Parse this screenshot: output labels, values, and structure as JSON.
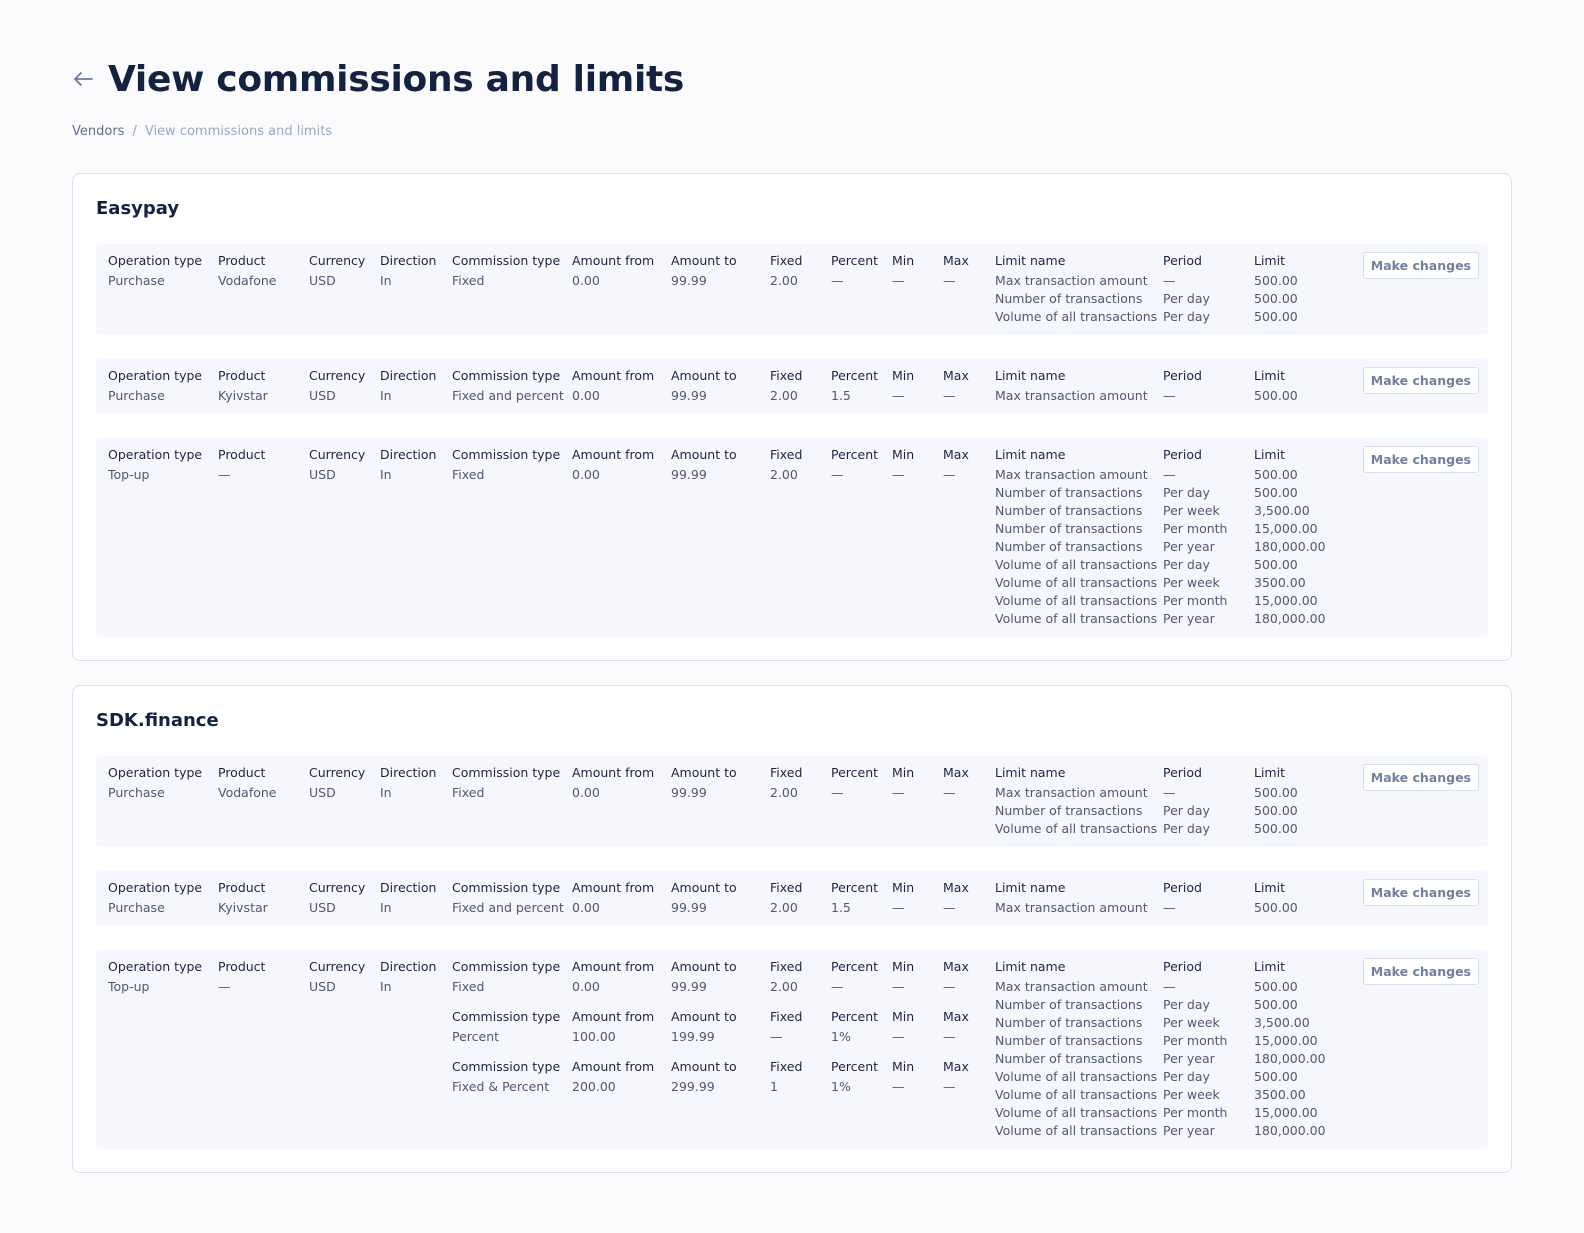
{
  "header": {
    "title": "View commissions and limits",
    "back_icon": "arrow-left-icon"
  },
  "breadcrumb": [
    {
      "label": "Vendors"
    },
    {
      "separator": "/"
    },
    {
      "label": "View commissions and limits"
    }
  ],
  "labels": {
    "operation_type": "Operation type",
    "product": "Product",
    "currency": "Currency",
    "direction": "Direction",
    "commission_type": "Commission type",
    "amount_from": "Amount from",
    "amount_to": "Amount to",
    "fixed": "Fixed",
    "percent": "Percent",
    "min": "Min",
    "max": "Max",
    "limit_name": "Limit name",
    "period": "Period",
    "limit": "Limit",
    "make_changes": "Make changes"
  },
  "vendors": [
    {
      "name": "Easypay",
      "rows": [
        {
          "operation_type": "Purchase",
          "product": "Vodafone",
          "currency": "USD",
          "direction": "In",
          "commissions": [
            {
              "type": "Fixed",
              "from": "0.00",
              "to": "99.99",
              "fixed": "2.00",
              "percent": "—",
              "min": "—",
              "max": "—"
            }
          ],
          "limits": [
            {
              "name": "Max transaction amount",
              "period": "—",
              "limit": "500.00"
            },
            {
              "name": "Number of transactions",
              "period": "Per day",
              "limit": "500.00"
            },
            {
              "name": "Volume of all transactions",
              "period": "Per day",
              "limit": "500.00"
            }
          ]
        },
        {
          "operation_type": "Purchase",
          "product": "Kyivstar",
          "currency": "USD",
          "direction": "In",
          "commissions": [
            {
              "type": "Fixed and percent",
              "from": "0.00",
              "to": "99.99",
              "fixed": "2.00",
              "percent": "1.5",
              "min": "—",
              "max": "—"
            }
          ],
          "limits": [
            {
              "name": "Max transaction amount",
              "period": "—",
              "limit": "500.00"
            }
          ]
        },
        {
          "operation_type": "Top-up",
          "product": "—",
          "currency": "USD",
          "direction": "In",
          "commissions": [
            {
              "type": "Fixed",
              "from": "0.00",
              "to": "99.99",
              "fixed": "2.00",
              "percent": "—",
              "min": "—",
              "max": "—"
            }
          ],
          "limits": [
            {
              "name": "Max transaction amount",
              "period": "—",
              "limit": "500.00"
            },
            {
              "name": "Number of transactions",
              "period": "Per day",
              "limit": "500.00"
            },
            {
              "name": "Number of transactions",
              "period": "Per week",
              "limit": "3,500.00"
            },
            {
              "name": "Number of transactions",
              "period": "Per month",
              "limit": "15,000.00"
            },
            {
              "name": "Number of transactions",
              "period": "Per year",
              "limit": "180,000.00"
            },
            {
              "name": "Volume of all transactions",
              "period": "Per day",
              "limit": "500.00"
            },
            {
              "name": "Volume of all transactions",
              "period": "Per week",
              "limit": "3500.00"
            },
            {
              "name": "Volume of all transactions",
              "period": "Per month",
              "limit": "15,000.00"
            },
            {
              "name": "Volume of all transactions",
              "period": "Per year",
              "limit": "180,000.00"
            }
          ]
        }
      ]
    },
    {
      "name": "SDK.finance",
      "rows": [
        {
          "operation_type": "Purchase",
          "product": "Vodafone",
          "currency": "USD",
          "direction": "In",
          "commissions": [
            {
              "type": "Fixed",
              "from": "0.00",
              "to": "99.99",
              "fixed": "2.00",
              "percent": "—",
              "min": "—",
              "max": "—"
            }
          ],
          "limits": [
            {
              "name": "Max transaction amount",
              "period": "—",
              "limit": "500.00"
            },
            {
              "name": "Number of transactions",
              "period": "Per day",
              "limit": "500.00"
            },
            {
              "name": "Volume of all transactions",
              "period": "Per day",
              "limit": "500.00"
            }
          ]
        },
        {
          "operation_type": "Purchase",
          "product": "Kyivstar",
          "currency": "USD",
          "direction": "In",
          "commissions": [
            {
              "type": "Fixed and percent",
              "from": "0.00",
              "to": "99.99",
              "fixed": "2.00",
              "percent": "1.5",
              "min": "—",
              "max": "—"
            }
          ],
          "limits": [
            {
              "name": "Max transaction amount",
              "period": "—",
              "limit": "500.00"
            }
          ]
        },
        {
          "operation_type": "Top-up",
          "product": "—",
          "currency": "USD",
          "direction": "In",
          "commissions": [
            {
              "type": "Fixed",
              "from": "0.00",
              "to": "99.99",
              "fixed": "2.00",
              "percent": "—",
              "min": "—",
              "max": "—"
            },
            {
              "type": "Percent",
              "from": "100.00",
              "to": "199.99",
              "fixed": "—",
              "percent": "1%",
              "min": "—",
              "max": "—"
            },
            {
              "type": "Fixed & Percent",
              "from": "200.00",
              "to": "299.99",
              "fixed": "1",
              "percent": "1%",
              "min": "—",
              "max": "—"
            }
          ],
          "limits": [
            {
              "name": "Max transaction amount",
              "period": "—",
              "limit": "500.00"
            },
            {
              "name": "Number of transactions",
              "period": "Per day",
              "limit": "500.00"
            },
            {
              "name": "Number of transactions",
              "period": "Per week",
              "limit": "3,500.00"
            },
            {
              "name": "Number of transactions",
              "period": "Per month",
              "limit": "15,000.00"
            },
            {
              "name": "Number of transactions",
              "period": "Per year",
              "limit": "180,000.00"
            },
            {
              "name": "Volume of all transactions",
              "period": "Per day",
              "limit": "500.00"
            },
            {
              "name": "Volume of all transactions",
              "period": "Per week",
              "limit": "3500.00"
            },
            {
              "name": "Volume of all transactions",
              "period": "Per month",
              "limit": "15,000.00"
            },
            {
              "name": "Volume of all transactions",
              "period": "Per year",
              "limit": "180,000.00"
            }
          ]
        }
      ]
    }
  ]
}
